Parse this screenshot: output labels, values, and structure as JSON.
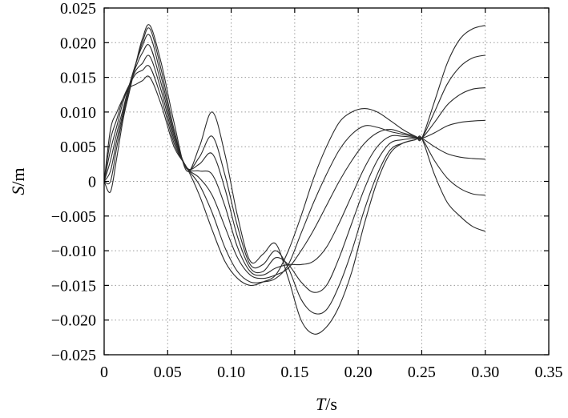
{
  "chart_data": {
    "type": "line",
    "xlabel": {
      "var": "T",
      "unit": "/s"
    },
    "ylabel": {
      "var": "S",
      "unit": "/m"
    },
    "xlim": [
      0,
      0.35
    ],
    "ylim": [
      -0.025,
      0.025
    ],
    "xticks": [
      0,
      0.05,
      0.1,
      0.15,
      0.2,
      0.25,
      0.3,
      0.35
    ],
    "xtick_labels": [
      "0",
      "0.05",
      "0.10",
      "0.15",
      "0.20",
      "0.25",
      "0.30",
      "0.35"
    ],
    "yticks": [
      -0.025,
      -0.02,
      -0.015,
      -0.01,
      -0.005,
      0,
      0.005,
      0.01,
      0.015,
      0.02,
      0.025
    ],
    "ytick_labels": [
      "−0.025",
      "−0.020",
      "−0.015",
      "−0.010",
      "−0.005",
      "0",
      "0.005",
      "0.010",
      "0.015",
      "0.020",
      "0.025"
    ],
    "grid": true,
    "series": [
      {
        "x": [
          0,
          0.005,
          0.01,
          0.015,
          0.02,
          0.025,
          0.03,
          0.036,
          0.045,
          0.055,
          0.065,
          0.075,
          0.085,
          0.095,
          0.105,
          0.115,
          0.125,
          0.135,
          0.145,
          0.155,
          0.165,
          0.175,
          0.185,
          0.195,
          0.205,
          0.215,
          0.225,
          0.235,
          0.245,
          0.25,
          0.26,
          0.27,
          0.28,
          0.29,
          0.3
        ],
        "y": [
          0,
          -0.0015,
          0.0035,
          0.009,
          0.013,
          0.017,
          0.0205,
          0.0225,
          0.017,
          0.0085,
          0.0015,
          0.005,
          0.01,
          0.004,
          -0.005,
          -0.0115,
          -0.0105,
          -0.009,
          -0.014,
          -0.02,
          -0.022,
          -0.021,
          -0.018,
          -0.013,
          -0.006,
          0.0,
          0.004,
          0.0055,
          0.006,
          0.0062,
          0.001,
          -0.003,
          -0.005,
          -0.0065,
          -0.0072
        ]
      },
      {
        "x": [
          0,
          0.005,
          0.01,
          0.015,
          0.02,
          0.025,
          0.03,
          0.036,
          0.045,
          0.055,
          0.065,
          0.075,
          0.085,
          0.095,
          0.105,
          0.115,
          0.125,
          0.135,
          0.145,
          0.155,
          0.165,
          0.175,
          0.185,
          0.195,
          0.205,
          0.215,
          0.225,
          0.235,
          0.245,
          0.25,
          0.26,
          0.27,
          0.28,
          0.29,
          0.3
        ],
        "y": [
          0,
          0.0,
          0.005,
          0.0095,
          0.0135,
          0.017,
          0.02,
          0.022,
          0.016,
          0.0075,
          0.0018,
          0.0035,
          0.0065,
          0.001,
          -0.0065,
          -0.012,
          -0.012,
          -0.01,
          -0.0125,
          -0.017,
          -0.019,
          -0.0185,
          -0.015,
          -0.01,
          -0.004,
          0.001,
          0.0045,
          0.0055,
          0.006,
          0.0062,
          0.003,
          0.0005,
          -0.001,
          -0.0018,
          -0.002
        ]
      },
      {
        "x": [
          0,
          0.005,
          0.01,
          0.015,
          0.02,
          0.025,
          0.03,
          0.036,
          0.045,
          0.055,
          0.065,
          0.075,
          0.085,
          0.095,
          0.105,
          0.115,
          0.125,
          0.135,
          0.145,
          0.155,
          0.165,
          0.175,
          0.185,
          0.195,
          0.205,
          0.215,
          0.225,
          0.235,
          0.245,
          0.25,
          0.26,
          0.27,
          0.28,
          0.29,
          0.3
        ],
        "y": [
          0,
          0.0015,
          0.006,
          0.01,
          0.014,
          0.017,
          0.0195,
          0.021,
          0.015,
          0.007,
          0.002,
          0.0025,
          0.004,
          -0.001,
          -0.008,
          -0.0125,
          -0.013,
          -0.011,
          -0.012,
          -0.0145,
          -0.016,
          -0.015,
          -0.011,
          -0.006,
          -0.001,
          0.003,
          0.0055,
          0.006,
          0.0062,
          0.0062,
          0.005,
          0.004,
          0.0035,
          0.0033,
          0.0032
        ]
      },
      {
        "x": [
          0,
          0.005,
          0.01,
          0.015,
          0.02,
          0.025,
          0.03,
          0.036,
          0.045,
          0.055,
          0.065,
          0.075,
          0.085,
          0.095,
          0.105,
          0.115,
          0.125,
          0.135,
          0.145,
          0.155,
          0.165,
          0.175,
          0.185,
          0.195,
          0.205,
          0.215,
          0.225,
          0.235,
          0.245,
          0.25,
          0.26,
          0.27,
          0.28,
          0.29,
          0.3
        ],
        "y": [
          0,
          0.003,
          0.007,
          0.0105,
          0.014,
          0.0165,
          0.0185,
          0.0195,
          0.014,
          0.0065,
          0.002,
          0.0015,
          0.001,
          -0.0035,
          -0.0095,
          -0.013,
          -0.0135,
          -0.0125,
          -0.012,
          -0.012,
          -0.0115,
          -0.0095,
          -0.006,
          -0.002,
          0.002,
          0.005,
          0.0065,
          0.0065,
          0.0063,
          0.0062,
          0.007,
          0.008,
          0.0085,
          0.0087,
          0.0088
        ]
      },
      {
        "x": [
          0,
          0.005,
          0.01,
          0.015,
          0.02,
          0.025,
          0.03,
          0.036,
          0.045,
          0.055,
          0.065,
          0.075,
          0.085,
          0.095,
          0.105,
          0.115,
          0.125,
          0.135,
          0.145,
          0.155,
          0.165,
          0.175,
          0.185,
          0.195,
          0.205,
          0.215,
          0.225,
          0.235,
          0.245,
          0.25,
          0.26,
          0.27,
          0.28,
          0.29,
          0.3
        ],
        "y": [
          0,
          0.0045,
          0.008,
          0.0115,
          0.014,
          0.016,
          0.017,
          0.018,
          0.013,
          0.006,
          0.002,
          0.0005,
          -0.002,
          -0.0065,
          -0.011,
          -0.0135,
          -0.014,
          -0.0135,
          -0.0125,
          -0.01,
          -0.007,
          -0.0035,
          0.0,
          0.003,
          0.0055,
          0.007,
          0.0075,
          0.007,
          0.0065,
          0.0062,
          0.0085,
          0.011,
          0.0125,
          0.0133,
          0.0135
        ]
      },
      {
        "x": [
          0,
          0.005,
          0.01,
          0.015,
          0.02,
          0.025,
          0.03,
          0.036,
          0.045,
          0.055,
          0.065,
          0.075,
          0.085,
          0.095,
          0.105,
          0.115,
          0.125,
          0.135,
          0.145,
          0.155,
          0.165,
          0.175,
          0.185,
          0.195,
          0.205,
          0.215,
          0.225,
          0.235,
          0.245,
          0.25,
          0.26,
          0.27,
          0.28,
          0.29,
          0.3
        ],
        "y": [
          0,
          0.006,
          0.009,
          0.012,
          0.014,
          0.0155,
          0.016,
          0.0165,
          0.012,
          0.0055,
          0.002,
          -0.0005,
          -0.0045,
          -0.0095,
          -0.013,
          -0.0145,
          -0.0145,
          -0.014,
          -0.012,
          -0.0075,
          -0.003,
          0.001,
          0.0045,
          0.0068,
          0.008,
          0.0078,
          0.0072,
          0.0068,
          0.0064,
          0.0062,
          0.01,
          0.014,
          0.0165,
          0.0178,
          0.0182
        ]
      },
      {
        "x": [
          0,
          0.005,
          0.01,
          0.015,
          0.02,
          0.025,
          0.03,
          0.036,
          0.045,
          0.055,
          0.065,
          0.075,
          0.085,
          0.095,
          0.105,
          0.115,
          0.125,
          0.135,
          0.145,
          0.155,
          0.165,
          0.175,
          0.185,
          0.195,
          0.205,
          0.215,
          0.225,
          0.235,
          0.245,
          0.25,
          0.26,
          0.27,
          0.28,
          0.29,
          0.3
        ],
        "y": [
          0,
          0.0075,
          0.01,
          0.012,
          0.0135,
          0.014,
          0.0145,
          0.015,
          0.011,
          0.005,
          0.002,
          -0.002,
          -0.007,
          -0.0115,
          -0.014,
          -0.015,
          -0.0145,
          -0.0135,
          -0.01,
          -0.005,
          0.0005,
          0.005,
          0.0085,
          0.01,
          0.0105,
          0.01,
          0.0088,
          0.0075,
          0.0065,
          0.0062,
          0.0115,
          0.017,
          0.0205,
          0.022,
          0.0225
        ]
      }
    ]
  }
}
